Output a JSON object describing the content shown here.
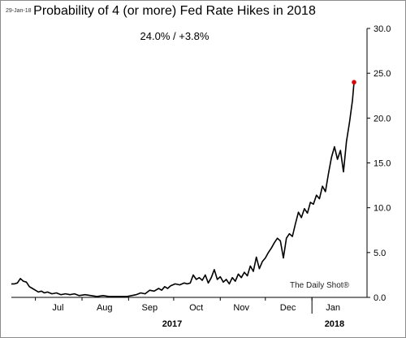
{
  "date_stamp": "29-Jan-18",
  "watermark": "The Daily Shot®",
  "colors": {
    "line": "#000000",
    "last_point": "#e00000",
    "axis": "#000000",
    "frame": "#8c8c8c"
  },
  "chart_data": {
    "type": "line",
    "title": "Probability of 4 (or more) Fed Rate Hikes in 2018",
    "subtitle": "24.0%  /  +3.8%",
    "xlabel": "",
    "ylabel": "",
    "ylim": [
      0,
      30
    ],
    "yticks": [
      "0.0",
      "5.0",
      "10.0",
      "15.0",
      "20.0",
      "25.0",
      "30.0"
    ],
    "y_axis_side": "right",
    "grid": false,
    "x_range": [
      "2017-06-15",
      "2018-01-29"
    ],
    "month_labels": [
      {
        "label": "Jul",
        "date": "2017-07-16"
      },
      {
        "label": "Aug",
        "date": "2017-08-16"
      },
      {
        "label": "Sep",
        "date": "2017-09-15"
      },
      {
        "label": "Oct",
        "date": "2017-10-16"
      },
      {
        "label": "Nov",
        "date": "2017-11-15"
      },
      {
        "label": "Dec",
        "date": "2017-12-16"
      },
      {
        "label": "Jan",
        "date": "2018-01-15"
      }
    ],
    "year_labels": [
      {
        "label": "2017",
        "date": "2017-09-30"
      },
      {
        "label": "2018",
        "date": "2018-01-16"
      }
    ],
    "year_divider": "2018-01-01",
    "series": [
      {
        "name": "",
        "highlight_last": true,
        "points": [
          [
            "2017-06-15",
            1.5
          ],
          [
            "2017-06-17",
            1.5
          ],
          [
            "2017-06-19",
            1.6
          ],
          [
            "2017-06-21",
            2.1
          ],
          [
            "2017-06-23",
            1.8
          ],
          [
            "2017-06-25",
            1.7
          ],
          [
            "2017-06-27",
            1.2
          ],
          [
            "2017-06-29",
            1.0
          ],
          [
            "2017-07-01",
            0.8
          ],
          [
            "2017-07-03",
            0.6
          ],
          [
            "2017-07-05",
            0.7
          ],
          [
            "2017-07-07",
            0.5
          ],
          [
            "2017-07-09",
            0.6
          ],
          [
            "2017-07-12",
            0.4
          ],
          [
            "2017-07-15",
            0.5
          ],
          [
            "2017-07-18",
            0.3
          ],
          [
            "2017-07-21",
            0.4
          ],
          [
            "2017-07-24",
            0.3
          ],
          [
            "2017-07-27",
            0.4
          ],
          [
            "2017-07-30",
            0.2
          ],
          [
            "2017-08-03",
            0.3
          ],
          [
            "2017-08-07",
            0.2
          ],
          [
            "2017-08-11",
            0.1
          ],
          [
            "2017-08-15",
            0.2
          ],
          [
            "2017-08-19",
            0.1
          ],
          [
            "2017-08-23",
            0.1
          ],
          [
            "2017-08-27",
            0.1
          ],
          [
            "2017-08-31",
            0.1
          ],
          [
            "2017-09-03",
            0.2
          ],
          [
            "2017-09-06",
            0.3
          ],
          [
            "2017-09-09",
            0.5
          ],
          [
            "2017-09-12",
            0.4
          ],
          [
            "2017-09-15",
            0.8
          ],
          [
            "2017-09-18",
            0.7
          ],
          [
            "2017-09-21",
            1.0
          ],
          [
            "2017-09-23",
            0.8
          ],
          [
            "2017-09-25",
            1.2
          ],
          [
            "2017-09-27",
            1.0
          ],
          [
            "2017-09-29",
            1.3
          ],
          [
            "2017-10-02",
            1.5
          ],
          [
            "2017-10-05",
            1.4
          ],
          [
            "2017-10-08",
            1.6
          ],
          [
            "2017-10-10",
            1.5
          ],
          [
            "2017-10-12",
            1.6
          ],
          [
            "2017-10-14",
            2.5
          ],
          [
            "2017-10-16",
            2.0
          ],
          [
            "2017-10-18",
            2.2
          ],
          [
            "2017-10-20",
            1.9
          ],
          [
            "2017-10-22",
            2.5
          ],
          [
            "2017-10-24",
            1.6
          ],
          [
            "2017-10-26",
            2.2
          ],
          [
            "2017-10-28",
            3.1
          ],
          [
            "2017-10-30",
            2.0
          ],
          [
            "2017-11-01",
            2.3
          ],
          [
            "2017-11-03",
            1.7
          ],
          [
            "2017-11-05",
            2.0
          ],
          [
            "2017-11-07",
            1.5
          ],
          [
            "2017-11-09",
            2.2
          ],
          [
            "2017-11-11",
            1.8
          ],
          [
            "2017-11-13",
            2.6
          ],
          [
            "2017-11-15",
            2.2
          ],
          [
            "2017-11-17",
            2.8
          ],
          [
            "2017-11-19",
            2.4
          ],
          [
            "2017-11-21",
            3.5
          ],
          [
            "2017-11-23",
            2.9
          ],
          [
            "2017-11-25",
            4.5
          ],
          [
            "2017-11-27",
            3.2
          ],
          [
            "2017-11-29",
            4.0
          ],
          [
            "2017-12-01",
            4.4
          ],
          [
            "2017-12-03",
            5.0
          ],
          [
            "2017-12-05",
            5.5
          ],
          [
            "2017-12-07",
            6.1
          ],
          [
            "2017-12-09",
            6.6
          ],
          [
            "2017-12-11",
            6.3
          ],
          [
            "2017-12-13",
            4.4
          ],
          [
            "2017-12-15",
            6.6
          ],
          [
            "2017-12-17",
            7.1
          ],
          [
            "2017-12-19",
            6.8
          ],
          [
            "2017-12-21",
            8.2
          ],
          [
            "2017-12-23",
            9.5
          ],
          [
            "2017-12-25",
            8.9
          ],
          [
            "2017-12-27",
            9.9
          ],
          [
            "2017-12-29",
            9.4
          ],
          [
            "2017-12-31",
            10.6
          ],
          [
            "2018-01-02",
            10.4
          ],
          [
            "2018-01-04",
            11.4
          ],
          [
            "2018-01-06",
            11.0
          ],
          [
            "2018-01-08",
            12.4
          ],
          [
            "2018-01-10",
            11.8
          ],
          [
            "2018-01-12",
            13.8
          ],
          [
            "2018-01-14",
            15.6
          ],
          [
            "2018-01-16",
            16.8
          ],
          [
            "2018-01-18",
            15.4
          ],
          [
            "2018-01-20",
            16.4
          ],
          [
            "2018-01-22",
            14.0
          ],
          [
            "2018-01-24",
            17.4
          ],
          [
            "2018-01-26",
            19.5
          ],
          [
            "2018-01-28",
            22.0
          ],
          [
            "2018-01-29",
            24.0
          ]
        ]
      }
    ]
  }
}
